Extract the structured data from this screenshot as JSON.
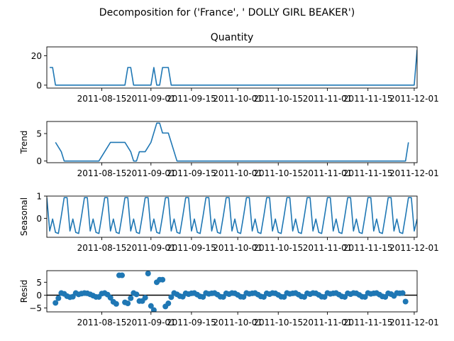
{
  "chart_data": {
    "type": "line",
    "suptitle": "Decomposition for ('France', ' DOLLY GIRL BEAKER')",
    "x_range": [
      "2011-08-01",
      "2011-12-01"
    ],
    "x_ticks": [
      "2011-08-15",
      "2011-09-01",
      "2011-09-15",
      "2011-10-01",
      "2011-10-15",
      "2011-11-01",
      "2011-11-15",
      "2011-12-01"
    ],
    "panels": [
      {
        "name": "observed",
        "title": "Quantity",
        "ylabel": "",
        "type": "line",
        "ylim": [
          -2,
          26
        ],
        "yticks": [
          0,
          20
        ],
        "points": [
          [
            "2011-07-28",
            12
          ],
          [
            "2011-07-29",
            12
          ],
          [
            "2011-07-30",
            0
          ],
          [
            "2011-08-23",
            0
          ],
          [
            "2011-08-24",
            12
          ],
          [
            "2011-08-25",
            12
          ],
          [
            "2011-08-26",
            0
          ],
          [
            "2011-09-01",
            0
          ],
          [
            "2011-09-02",
            12
          ],
          [
            "2011-09-03",
            0
          ],
          [
            "2011-09-04",
            0
          ],
          [
            "2011-09-05",
            12
          ],
          [
            "2011-09-07",
            12
          ],
          [
            "2011-09-08",
            0
          ],
          [
            "2011-12-01",
            0
          ],
          [
            "2011-12-02",
            24
          ]
        ]
      },
      {
        "name": "trend",
        "title": "",
        "ylabel": "Trend",
        "type": "line",
        "ylim": [
          -0.3,
          7.2
        ],
        "yticks": [
          0,
          5
        ],
        "points": [
          [
            "2011-07-30",
            3.4
          ],
          [
            "2011-08-01",
            1.7
          ],
          [
            "2011-08-02",
            0
          ],
          [
            "2011-08-14",
            0
          ],
          [
            "2011-08-16",
            1.7
          ],
          [
            "2011-08-18",
            3.4
          ],
          [
            "2011-08-23",
            3.4
          ],
          [
            "2011-08-25",
            1.7
          ],
          [
            "2011-08-26",
            0
          ],
          [
            "2011-08-27",
            0
          ],
          [
            "2011-08-28",
            1.7
          ],
          [
            "2011-08-30",
            1.7
          ],
          [
            "2011-09-01",
            3.4
          ],
          [
            "2011-09-03",
            6.9
          ],
          [
            "2011-09-04",
            6.9
          ],
          [
            "2011-09-05",
            5.1
          ],
          [
            "2011-09-07",
            5.1
          ],
          [
            "2011-09-10",
            0
          ],
          [
            "2011-11-28",
            0
          ],
          [
            "2011-11-29",
            3.4
          ]
        ]
      },
      {
        "name": "seasonal",
        "title": "",
        "ylabel": "Seasonal",
        "type": "line",
        "ylim": [
          -0.85,
          1.0
        ],
        "yticks": [
          0,
          1
        ],
        "pattern": [
          0.93,
          -0.57,
          -0.03,
          -0.63,
          -0.68,
          0.1,
          0.93
        ],
        "pattern_start": "2011-07-27",
        "pattern_end": "2011-12-02"
      },
      {
        "name": "resid",
        "title": "",
        "ylabel": "Resid",
        "type": "scatter",
        "ylim": [
          -6.5,
          9.5
        ],
        "yticks": [
          -5,
          0,
          5
        ],
        "zero_line": true,
        "points": [
          [
            "2011-07-30",
            -3.0
          ],
          [
            "2011-07-31",
            -1.2
          ],
          [
            "2011-08-01",
            0.8
          ],
          [
            "2011-08-02",
            0.5
          ],
          [
            "2011-08-03",
            -0.4
          ],
          [
            "2011-08-04",
            -0.8
          ],
          [
            "2011-08-05",
            -0.6
          ],
          [
            "2011-08-06",
            0.8
          ],
          [
            "2011-08-07",
            0.3
          ],
          [
            "2011-08-08",
            0.6
          ],
          [
            "2011-08-09",
            0.8
          ],
          [
            "2011-08-10",
            0.7
          ],
          [
            "2011-08-11",
            0.3
          ],
          [
            "2011-08-12",
            -0.2
          ],
          [
            "2011-08-13",
            -0.7
          ],
          [
            "2011-08-14",
            -0.7
          ],
          [
            "2011-08-15",
            0.6
          ],
          [
            "2011-08-16",
            0.8
          ],
          [
            "2011-08-17",
            0.2
          ],
          [
            "2011-08-18",
            -1.0
          ],
          [
            "2011-08-19",
            -2.6
          ],
          [
            "2011-08-20",
            -3.4
          ],
          [
            "2011-08-21",
            7.7
          ],
          [
            "2011-08-22",
            7.7
          ],
          [
            "2011-08-23",
            -2.8
          ],
          [
            "2011-08-24",
            -3.2
          ],
          [
            "2011-08-25",
            -1.2
          ],
          [
            "2011-08-26",
            0.8
          ],
          [
            "2011-08-27",
            0.3
          ],
          [
            "2011-08-28",
            -2.3
          ],
          [
            "2011-08-29",
            -2.3
          ],
          [
            "2011-08-30",
            -1.0
          ],
          [
            "2011-08-31",
            8.4
          ],
          [
            "2011-09-01",
            -4.2
          ],
          [
            "2011-09-02",
            -5.8
          ],
          [
            "2011-09-03",
            5.0
          ],
          [
            "2011-09-04",
            6.0
          ],
          [
            "2011-09-05",
            6.0
          ],
          [
            "2011-09-06",
            -4.4
          ],
          [
            "2011-09-07",
            -3.2
          ],
          [
            "2011-09-08",
            -0.8
          ],
          [
            "2011-09-09",
            0.8
          ],
          [
            "2011-09-10",
            0.3
          ],
          [
            "2011-09-11",
            -0.4
          ],
          [
            "2011-09-12",
            -0.6
          ],
          [
            "2011-09-13",
            0.7
          ],
          [
            "2011-09-14",
            0.4
          ],
          [
            "2011-09-15",
            0.7
          ],
          [
            "2011-09-16",
            0.8
          ],
          [
            "2011-09-17",
            0.2
          ],
          [
            "2011-09-18",
            -0.5
          ],
          [
            "2011-09-19",
            -0.7
          ],
          [
            "2011-09-20",
            0.8
          ],
          [
            "2011-09-21",
            0.5
          ],
          [
            "2011-09-22",
            0.7
          ],
          [
            "2011-09-23",
            0.8
          ],
          [
            "2011-09-24",
            0.2
          ],
          [
            "2011-09-25",
            -0.6
          ],
          [
            "2011-09-26",
            -0.7
          ],
          [
            "2011-09-27",
            0.7
          ],
          [
            "2011-09-28",
            0.4
          ],
          [
            "2011-09-29",
            0.8
          ],
          [
            "2011-09-30",
            0.7
          ],
          [
            "2011-10-01",
            0.1
          ],
          [
            "2011-10-02",
            -0.6
          ],
          [
            "2011-10-03",
            -0.7
          ],
          [
            "2011-10-04",
            0.8
          ],
          [
            "2011-10-05",
            0.5
          ],
          [
            "2011-10-06",
            0.7
          ],
          [
            "2011-10-07",
            0.8
          ],
          [
            "2011-10-08",
            0.2
          ],
          [
            "2011-10-09",
            -0.5
          ],
          [
            "2011-10-10",
            -0.7
          ],
          [
            "2011-10-11",
            0.7
          ],
          [
            "2011-10-12",
            0.4
          ],
          [
            "2011-10-13",
            0.8
          ],
          [
            "2011-10-14",
            0.7
          ],
          [
            "2011-10-15",
            0.1
          ],
          [
            "2011-10-16",
            -0.6
          ],
          [
            "2011-10-17",
            -0.7
          ],
          [
            "2011-10-18",
            0.8
          ],
          [
            "2011-10-19",
            0.5
          ],
          [
            "2011-10-20",
            0.7
          ],
          [
            "2011-10-21",
            0.8
          ],
          [
            "2011-10-22",
            0.2
          ],
          [
            "2011-10-23",
            -0.5
          ],
          [
            "2011-10-24",
            -0.7
          ],
          [
            "2011-10-25",
            0.7
          ],
          [
            "2011-10-26",
            0.4
          ],
          [
            "2011-10-27",
            0.8
          ],
          [
            "2011-10-28",
            0.7
          ],
          [
            "2011-10-29",
            0.1
          ],
          [
            "2011-10-30",
            -0.6
          ],
          [
            "2011-10-31",
            -0.7
          ],
          [
            "2011-11-01",
            0.8
          ],
          [
            "2011-11-02",
            0.5
          ],
          [
            "2011-11-03",
            0.7
          ],
          [
            "2011-11-04",
            0.8
          ],
          [
            "2011-11-05",
            0.2
          ],
          [
            "2011-11-06",
            -0.5
          ],
          [
            "2011-11-07",
            -0.7
          ],
          [
            "2011-11-08",
            0.7
          ],
          [
            "2011-11-09",
            0.4
          ],
          [
            "2011-11-10",
            0.8
          ],
          [
            "2011-11-11",
            0.7
          ],
          [
            "2011-11-12",
            0.1
          ],
          [
            "2011-11-13",
            -0.6
          ],
          [
            "2011-11-14",
            -0.7
          ],
          [
            "2011-11-15",
            0.8
          ],
          [
            "2011-11-16",
            0.5
          ],
          [
            "2011-11-17",
            0.7
          ],
          [
            "2011-11-18",
            0.8
          ],
          [
            "2011-11-19",
            0.2
          ],
          [
            "2011-11-20",
            -0.5
          ],
          [
            "2011-11-21",
            -0.7
          ],
          [
            "2011-11-22",
            0.7
          ],
          [
            "2011-11-23",
            0.4
          ],
          [
            "2011-11-24",
            -0.3
          ],
          [
            "2011-11-25",
            0.8
          ],
          [
            "2011-11-26",
            0.7
          ],
          [
            "2011-11-27",
            0.8
          ],
          [
            "2011-11-28",
            -2.5
          ]
        ]
      }
    ],
    "colors": {
      "series": "#1f77b4",
      "axes": "#000000"
    },
    "grid": false,
    "legend": "none"
  }
}
